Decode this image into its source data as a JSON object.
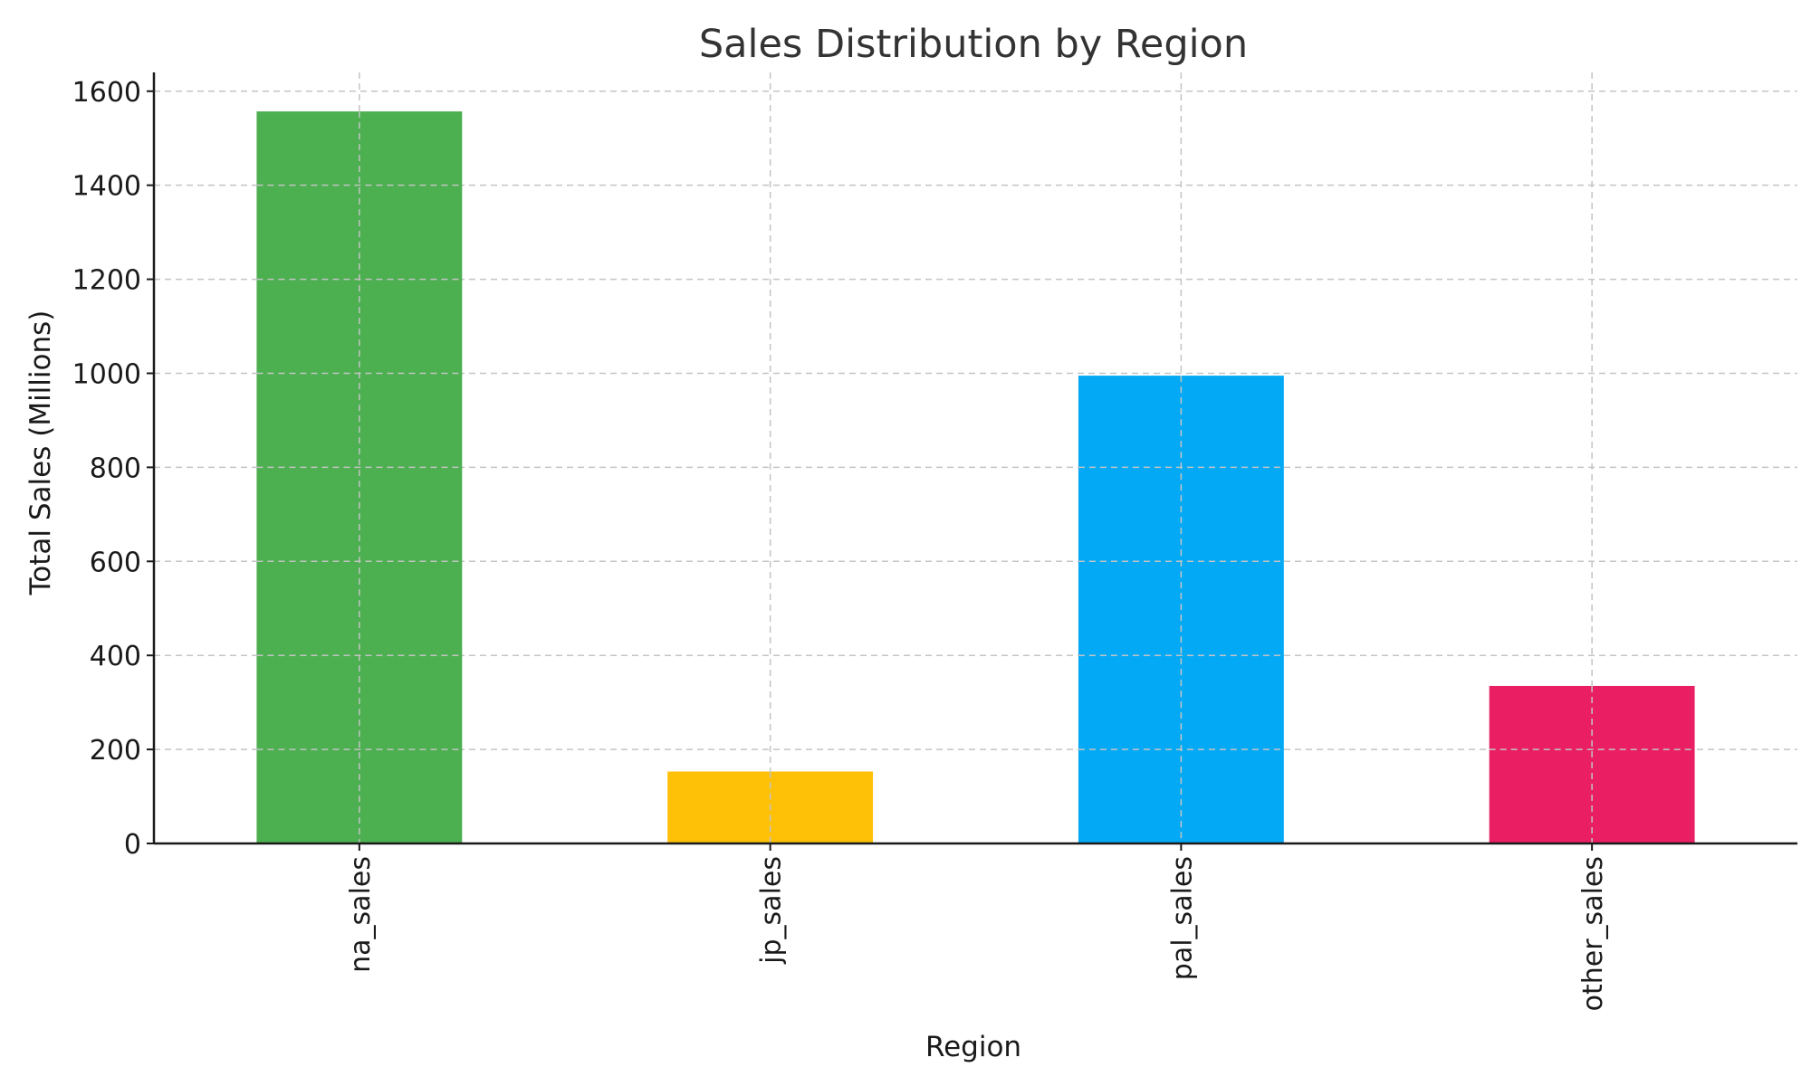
{
  "chart_data": {
    "type": "bar",
    "title": "Sales Distribution by Region",
    "xlabel": "Region",
    "ylabel": "Total Sales (Millions)",
    "categories": [
      "na_sales",
      "jp_sales",
      "pal_sales",
      "other_sales"
    ],
    "values": [
      1557,
      153,
      995,
      335
    ],
    "colors": [
      "#4caf50",
      "#ffc107",
      "#03a9f4",
      "#e91e63"
    ],
    "ylim": [
      0,
      1640
    ],
    "yticks": [
      0,
      200,
      400,
      600,
      800,
      1000,
      1200,
      1400,
      1600
    ],
    "grid": true,
    "legend": "none"
  }
}
